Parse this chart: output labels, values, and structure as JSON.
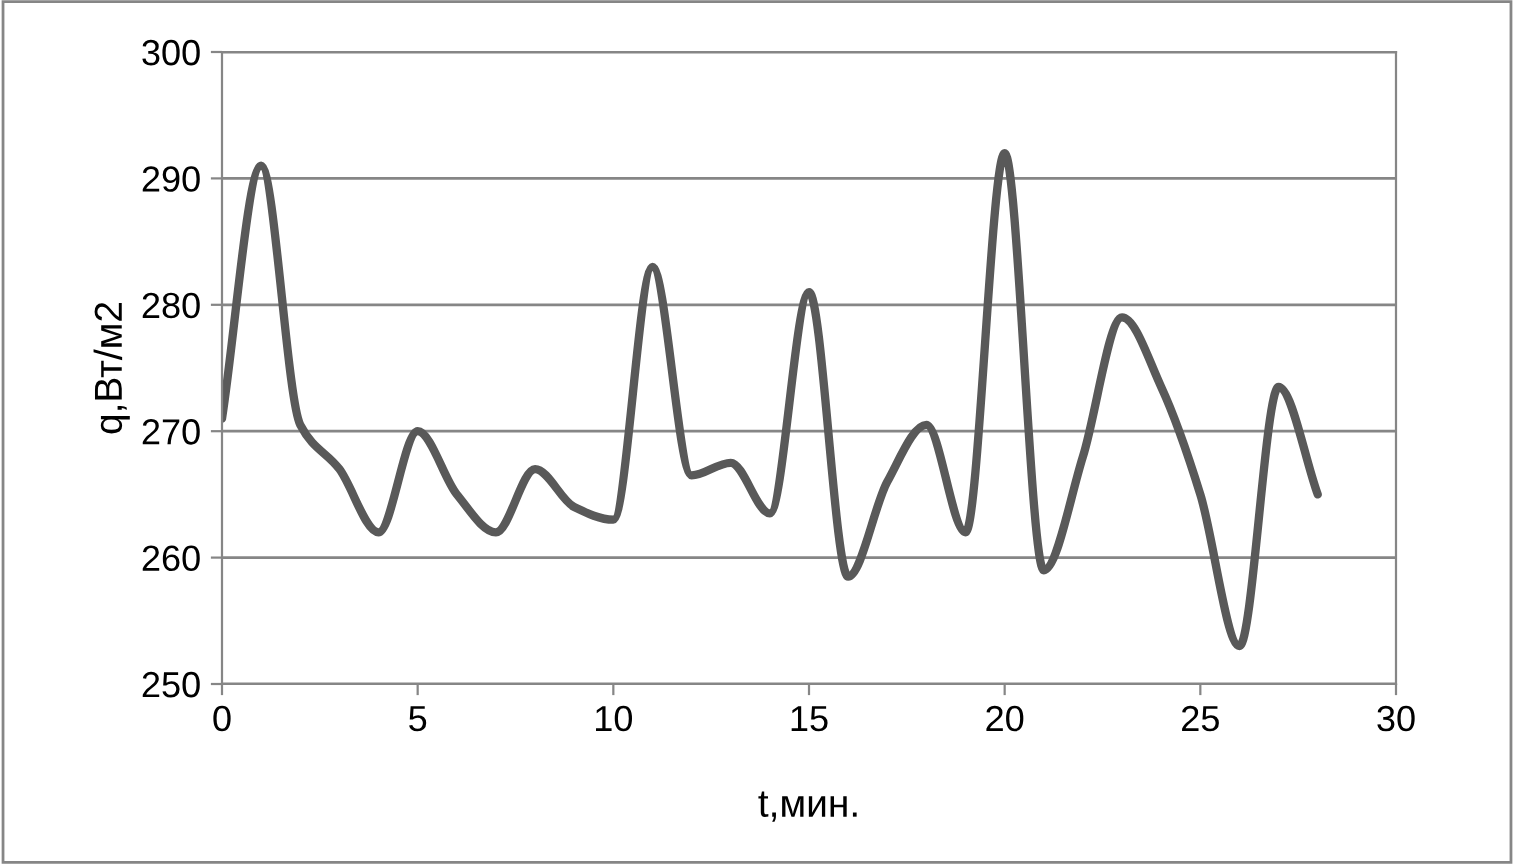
{
  "chart_data": {
    "type": "line",
    "xlabel": "t,мин.",
    "ylabel": "q,Вт/м2",
    "x": [
      0,
      1,
      2,
      3,
      4,
      5,
      6,
      7,
      8,
      9,
      10,
      11,
      12,
      13,
      14,
      15,
      16,
      17,
      18,
      19,
      20,
      21,
      22,
      23,
      24,
      25,
      26,
      27,
      28
    ],
    "series": [
      {
        "color": "#595959",
        "values": [
          271,
          291,
          270.5,
          267,
          262,
          270,
          265,
          262,
          267,
          264,
          263,
          283,
          266.5,
          267.5,
          263.5,
          281,
          258.5,
          266,
          270.5,
          262,
          292,
          259,
          268,
          279,
          273.5,
          265,
          253,
          273.5,
          265
        ]
      }
    ],
    "xlim": [
      0,
      30
    ],
    "xticks": [
      0,
      5,
      10,
      15,
      20,
      25,
      30
    ],
    "ylim": [
      250,
      300
    ],
    "yticks": [
      250,
      260,
      270,
      280,
      290,
      300
    ],
    "grid": "y",
    "legend": false,
    "marker": "none",
    "line_style": "solid"
  }
}
